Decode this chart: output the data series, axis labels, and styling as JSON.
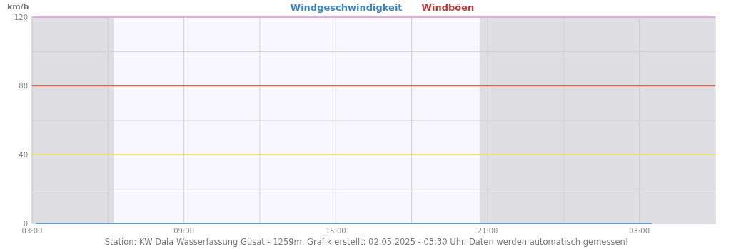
{
  "chart_data": {
    "type": "line",
    "ylabel": "km/h",
    "x": [
      "2025-05-01T03:10",
      "2025-05-02T03:30"
    ],
    "series": [
      {
        "name": "Windgeschwindigkeit",
        "color": "#3d85c6",
        "values": [
          0,
          0
        ]
      },
      {
        "name": "Windböen",
        "color": "#c0393b",
        "values": [
          null,
          null
        ]
      }
    ],
    "xlim": [
      "2025-05-01T03:00",
      "2025-05-02T06:00"
    ],
    "xticks": [
      {
        "value": "2025-05-01T03:00",
        "label": "03:00"
      },
      {
        "value": "2025-05-01T06:00",
        "label": null
      },
      {
        "value": "2025-05-01T09:00",
        "label": "09:00"
      },
      {
        "value": "2025-05-01T12:00",
        "label": null
      },
      {
        "value": "2025-05-01T15:00",
        "label": "15:00"
      },
      {
        "value": "2025-05-01T18:00",
        "label": null
      },
      {
        "value": "2025-05-01T21:00",
        "label": "21:00"
      },
      {
        "value": "2025-05-02T00:00",
        "label": null
      },
      {
        "value": "2025-05-02T03:00",
        "label": "03:00"
      }
    ],
    "ylim": [
      0,
      120
    ],
    "yticks": [
      0,
      {
        "value": 20,
        "label": null
      },
      40,
      {
        "value": 60,
        "label": null
      },
      80,
      {
        "value": 100,
        "label": null
      },
      120
    ],
    "grid": true,
    "legend": "top",
    "marker": "none",
    "line_style": "solid",
    "ref_lines": [
      {
        "axis": "y",
        "value": 120,
        "color": "#f07cf0"
      },
      {
        "axis": "y",
        "value": 80,
        "color": "#e8501e"
      },
      {
        "axis": "y",
        "value": 40,
        "color": "#f0f020"
      }
    ],
    "bands": [
      {
        "axis": "x",
        "from": "2025-05-01T03:00",
        "to": "2025-05-01T06:14",
        "color": "#dfdfe3"
      },
      {
        "axis": "x",
        "from": "2025-05-01T20:41",
        "to": "2025-05-02T06:00",
        "color": "#dfdfe3"
      }
    ],
    "annotations": [
      "Station: KW Dala Wasserfassung Güsat - 1259m. Grafik erstellt: 02.05.2025 - 03:30 Uhr. Daten werden automatisch gemessen!"
    ]
  }
}
